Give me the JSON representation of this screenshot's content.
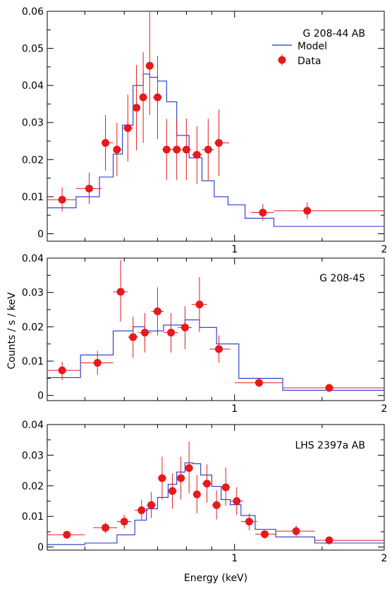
{
  "figure": {
    "ylabel": "Counts / s / keV",
    "xlabel": "Energy (keV)"
  },
  "legend": {
    "model_label": "Model",
    "data_label": "Data",
    "model_color": "#2233cc",
    "data_color": "#e41a1c"
  },
  "chart_data": [
    {
      "type": "scatter",
      "title": "G 208-44 AB",
      "xscale": "log",
      "xlim": [
        0.42,
        2.0
      ],
      "ylim": [
        -0.002,
        0.06
      ],
      "xticks": [
        {
          "value": 1,
          "label": "1"
        },
        {
          "value": 2,
          "label": "2"
        }
      ],
      "yticks": [
        {
          "value": 0,
          "label": "0"
        },
        {
          "value": 0.01,
          "label": "0.01"
        },
        {
          "value": 0.02,
          "label": "0.02"
        },
        {
          "value": 0.03,
          "label": "0.03"
        },
        {
          "value": 0.04,
          "label": "0.04"
        },
        {
          "value": 0.05,
          "label": "0.05"
        },
        {
          "value": 0.06,
          "label": "0.06"
        }
      ],
      "legend_position": "top-right",
      "series": [
        {
          "name": "Data",
          "points": [
            {
              "x": 0.45,
              "xlo": 0.42,
              "xhi": 0.48,
              "y": 0.0092,
              "ylo": 0.006,
              "yhi": 0.0125
            },
            {
              "x": 0.51,
              "xlo": 0.48,
              "xhi": 0.54,
              "y": 0.0122,
              "ylo": 0.008,
              "yhi": 0.0165
            },
            {
              "x": 0.55,
              "xlo": 0.54,
              "xhi": 0.57,
              "y": 0.0245,
              "ylo": 0.017,
              "yhi": 0.032
            },
            {
              "x": 0.58,
              "xlo": 0.57,
              "xhi": 0.595,
              "y": 0.0227,
              "ylo": 0.0155,
              "yhi": 0.03
            },
            {
              "x": 0.61,
              "xlo": 0.595,
              "xhi": 0.625,
              "y": 0.0285,
              "ylo": 0.0195,
              "yhi": 0.0375
            },
            {
              "x": 0.635,
              "xlo": 0.625,
              "xhi": 0.645,
              "y": 0.034,
              "ylo": 0.0225,
              "yhi": 0.0455
            },
            {
              "x": 0.655,
              "xlo": 0.645,
              "xhi": 0.665,
              "y": 0.0368,
              "ylo": 0.0245,
              "yhi": 0.049
            },
            {
              "x": 0.675,
              "xlo": 0.665,
              "xhi": 0.685,
              "y": 0.0453,
              "ylo": 0.032,
              "yhi": 0.0598
            },
            {
              "x": 0.7,
              "xlo": 0.685,
              "xhi": 0.715,
              "y": 0.0368,
              "ylo": 0.0255,
              "yhi": 0.048
            },
            {
              "x": 0.73,
              "xlo": 0.715,
              "xhi": 0.745,
              "y": 0.0227,
              "ylo": 0.0145,
              "yhi": 0.031
            },
            {
              "x": 0.765,
              "xlo": 0.745,
              "xhi": 0.78,
              "y": 0.0227,
              "ylo": 0.0145,
              "yhi": 0.031
            },
            {
              "x": 0.8,
              "xlo": 0.78,
              "xhi": 0.815,
              "y": 0.0227,
              "ylo": 0.0145,
              "yhi": 0.031
            },
            {
              "x": 0.84,
              "xlo": 0.82,
              "xhi": 0.86,
              "y": 0.0213,
              "ylo": 0.0135,
              "yhi": 0.029
            },
            {
              "x": 0.885,
              "xlo": 0.86,
              "xhi": 0.91,
              "y": 0.0227,
              "ylo": 0.0145,
              "yhi": 0.031
            },
            {
              "x": 0.93,
              "xlo": 0.91,
              "xhi": 0.975,
              "y": 0.0245,
              "ylo": 0.0155,
              "yhi": 0.0335
            },
            {
              "x": 1.14,
              "xlo": 1.08,
              "xhi": 1.2,
              "y": 0.0057,
              "ylo": 0.0035,
              "yhi": 0.008
            },
            {
              "x": 1.4,
              "xlo": 1.2,
              "xhi": 2.0,
              "y": 0.0062,
              "ylo": 0.004,
              "yhi": 0.0085
            }
          ]
        },
        {
          "name": "Model",
          "steps": [
            {
              "x": 0.42,
              "y": 0.007
            },
            {
              "x": 0.48,
              "y": 0.01
            },
            {
              "x": 0.535,
              "y": 0.0153
            },
            {
              "x": 0.57,
              "y": 0.0215
            },
            {
              "x": 0.595,
              "y": 0.0293
            },
            {
              "x": 0.625,
              "y": 0.04
            },
            {
              "x": 0.655,
              "y": 0.0431
            },
            {
              "x": 0.675,
              "y": 0.0422
            },
            {
              "x": 0.7,
              "y": 0.0412
            },
            {
              "x": 0.73,
              "y": 0.0356
            },
            {
              "x": 0.765,
              "y": 0.0265
            },
            {
              "x": 0.81,
              "y": 0.0205
            },
            {
              "x": 0.86,
              "y": 0.0143
            },
            {
              "x": 0.91,
              "y": 0.01
            },
            {
              "x": 0.97,
              "y": 0.0078
            },
            {
              "x": 1.05,
              "y": 0.0042
            },
            {
              "x": 1.2,
              "y": 0.002
            },
            {
              "x": 2.0,
              "y": 0.002
            }
          ]
        }
      ]
    },
    {
      "type": "scatter",
      "title": "G 208-45",
      "xscale": "log",
      "xlim": [
        0.42,
        2.0
      ],
      "ylim": [
        -0.0015,
        0.04
      ],
      "xticks": [
        {
          "value": 1,
          "label": "1"
        },
        {
          "value": 2,
          "label": "2"
        }
      ],
      "yticks": [
        {
          "value": 0,
          "label": "0"
        },
        {
          "value": 0.01,
          "label": "0.01"
        },
        {
          "value": 0.02,
          "label": "0.02"
        },
        {
          "value": 0.03,
          "label": "0.03"
        },
        {
          "value": 0.04,
          "label": "0.04"
        }
      ],
      "series": [
        {
          "name": "Data",
          "points": [
            {
              "x": 0.45,
              "xlo": 0.42,
              "xhi": 0.49,
              "y": 0.0073,
              "ylo": 0.0045,
              "yhi": 0.0098
            },
            {
              "x": 0.53,
              "xlo": 0.49,
              "xhi": 0.57,
              "y": 0.0095,
              "ylo": 0.006,
              "yhi": 0.013
            },
            {
              "x": 0.59,
              "xlo": 0.57,
              "xhi": 0.61,
              "y": 0.0302,
              "ylo": 0.0215,
              "yhi": 0.0395
            },
            {
              "x": 0.625,
              "xlo": 0.61,
              "xhi": 0.64,
              "y": 0.017,
              "ylo": 0.011,
              "yhi": 0.023
            },
            {
              "x": 0.66,
              "xlo": 0.64,
              "xhi": 0.68,
              "y": 0.0183,
              "ylo": 0.0125,
              "yhi": 0.024
            },
            {
              "x": 0.7,
              "xlo": 0.68,
              "xhi": 0.72,
              "y": 0.0245,
              "ylo": 0.0175,
              "yhi": 0.0315
            },
            {
              "x": 0.745,
              "xlo": 0.72,
              "xhi": 0.77,
              "y": 0.0183,
              "ylo": 0.0125,
              "yhi": 0.024
            },
            {
              "x": 0.795,
              "xlo": 0.77,
              "xhi": 0.82,
              "y": 0.0198,
              "ylo": 0.0135,
              "yhi": 0.026
            },
            {
              "x": 0.85,
              "xlo": 0.82,
              "xhi": 0.88,
              "y": 0.0265,
              "ylo": 0.0185,
              "yhi": 0.0345
            },
            {
              "x": 0.93,
              "xlo": 0.89,
              "xhi": 0.98,
              "y": 0.0135,
              "ylo": 0.0095,
              "yhi": 0.0175
            },
            {
              "x": 1.12,
              "xlo": 1.0,
              "xhi": 1.25,
              "y": 0.0037,
              "ylo": 0.0025,
              "yhi": 0.005
            },
            {
              "x": 1.55,
              "xlo": 1.25,
              "xhi": 2.0,
              "y": 0.0022,
              "ylo": 0.0015,
              "yhi": 0.003
            }
          ]
        },
        {
          "name": "Model",
          "steps": [
            {
              "x": 0.42,
              "y": 0.0052
            },
            {
              "x": 0.49,
              "y": 0.0118
            },
            {
              "x": 0.57,
              "y": 0.0188
            },
            {
              "x": 0.625,
              "y": 0.02
            },
            {
              "x": 0.66,
              "y": 0.0188
            },
            {
              "x": 0.72,
              "y": 0.0205
            },
            {
              "x": 0.795,
              "y": 0.022
            },
            {
              "x": 0.85,
              "y": 0.0198
            },
            {
              "x": 0.92,
              "y": 0.015
            },
            {
              "x": 1.02,
              "y": 0.005
            },
            {
              "x": 1.25,
              "y": 0.0015
            },
            {
              "x": 2.0,
              "y": 0.0015
            }
          ]
        }
      ]
    },
    {
      "type": "scatter",
      "title": "LHS 2397a AB",
      "xscale": "log",
      "xlim": [
        0.42,
        2.0
      ],
      "ylim": [
        -0.001,
        0.04
      ],
      "xticks": [
        {
          "value": 1,
          "label": "1"
        },
        {
          "value": 2,
          "label": "2"
        }
      ],
      "yticks": [
        {
          "value": 0,
          "label": "0"
        },
        {
          "value": 0.01,
          "label": "0.01"
        },
        {
          "value": 0.02,
          "label": "0.02"
        },
        {
          "value": 0.03,
          "label": "0.03"
        },
        {
          "value": 0.04,
          "label": "0.04"
        }
      ],
      "series": [
        {
          "name": "Data",
          "points": [
            {
              "x": 0.46,
              "xlo": 0.42,
              "xhi": 0.5,
              "y": 0.004,
              "ylo": 0.003,
              "yhi": 0.005
            },
            {
              "x": 0.55,
              "xlo": 0.52,
              "xhi": 0.58,
              "y": 0.0063,
              "ylo": 0.0045,
              "yhi": 0.008
            },
            {
              "x": 0.6,
              "xlo": 0.58,
              "xhi": 0.62,
              "y": 0.0083,
              "ylo": 0.006,
              "yhi": 0.0105
            },
            {
              "x": 0.65,
              "xlo": 0.63,
              "xhi": 0.67,
              "y": 0.012,
              "ylo": 0.0085,
              "yhi": 0.0155
            },
            {
              "x": 0.68,
              "xlo": 0.665,
              "xhi": 0.695,
              "y": 0.0137,
              "ylo": 0.0095,
              "yhi": 0.018
            },
            {
              "x": 0.715,
              "xlo": 0.7,
              "xhi": 0.73,
              "y": 0.0225,
              "ylo": 0.0155,
              "yhi": 0.0295
            },
            {
              "x": 0.75,
              "xlo": 0.735,
              "xhi": 0.765,
              "y": 0.0183,
              "ylo": 0.0125,
              "yhi": 0.024
            },
            {
              "x": 0.78,
              "xlo": 0.765,
              "xhi": 0.795,
              "y": 0.0225,
              "ylo": 0.0155,
              "yhi": 0.0295
            },
            {
              "x": 0.81,
              "xlo": 0.795,
              "xhi": 0.825,
              "y": 0.0258,
              "ylo": 0.0175,
              "yhi": 0.0345
            },
            {
              "x": 0.84,
              "xlo": 0.825,
              "xhi": 0.855,
              "y": 0.0172,
              "ylo": 0.011,
              "yhi": 0.0235
            },
            {
              "x": 0.88,
              "xlo": 0.86,
              "xhi": 0.9,
              "y": 0.0207,
              "ylo": 0.0145,
              "yhi": 0.027
            },
            {
              "x": 0.92,
              "xlo": 0.9,
              "xhi": 0.94,
              "y": 0.0137,
              "ylo": 0.009,
              "yhi": 0.0185
            },
            {
              "x": 0.96,
              "xlo": 0.94,
              "xhi": 0.98,
              "y": 0.0195,
              "ylo": 0.0135,
              "yhi": 0.026
            },
            {
              "x": 1.01,
              "xlo": 0.98,
              "xhi": 1.04,
              "y": 0.015,
              "ylo": 0.0105,
              "yhi": 0.0195
            },
            {
              "x": 1.07,
              "xlo": 1.03,
              "xhi": 1.11,
              "y": 0.0083,
              "ylo": 0.0055,
              "yhi": 0.011
            },
            {
              "x": 1.15,
              "xlo": 1.1,
              "xhi": 1.21,
              "y": 0.0042,
              "ylo": 0.0028,
              "yhi": 0.0055
            },
            {
              "x": 1.33,
              "xlo": 1.21,
              "xhi": 1.45,
              "y": 0.0052,
              "ylo": 0.0033,
              "yhi": 0.007
            },
            {
              "x": 1.55,
              "xlo": 1.45,
              "xhi": 2.0,
              "y": 0.0022,
              "ylo": 0.0013,
              "yhi": 0.003
            }
          ]
        },
        {
          "name": "Model",
          "steps": [
            {
              "x": 0.42,
              "y": 0.0008
            },
            {
              "x": 0.5,
              "y": 0.0013
            },
            {
              "x": 0.58,
              "y": 0.004
            },
            {
              "x": 0.63,
              "y": 0.0088
            },
            {
              "x": 0.665,
              "y": 0.0125
            },
            {
              "x": 0.7,
              "y": 0.0162
            },
            {
              "x": 0.735,
              "y": 0.0205
            },
            {
              "x": 0.765,
              "y": 0.0245
            },
            {
              "x": 0.795,
              "y": 0.0275
            },
            {
              "x": 0.825,
              "y": 0.0272
            },
            {
              "x": 0.855,
              "y": 0.0235
            },
            {
              "x": 0.9,
              "y": 0.0198
            },
            {
              "x": 0.94,
              "y": 0.0155
            },
            {
              "x": 0.98,
              "y": 0.0138
            },
            {
              "x": 1.03,
              "y": 0.0103
            },
            {
              "x": 1.1,
              "y": 0.0058
            },
            {
              "x": 1.21,
              "y": 0.0033
            },
            {
              "x": 1.45,
              "y": 0.0013
            },
            {
              "x": 2.0,
              "y": 0.0013
            }
          ]
        }
      ]
    }
  ]
}
